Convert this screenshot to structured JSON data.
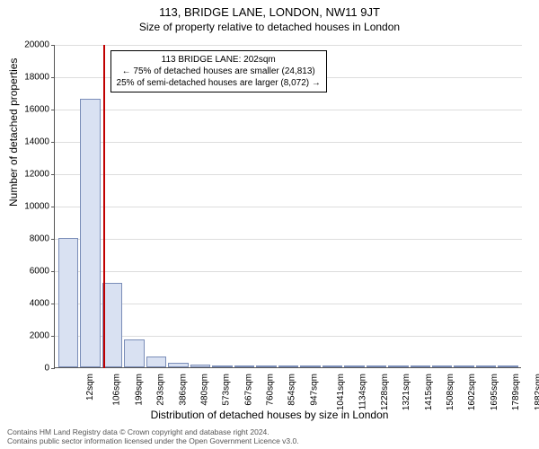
{
  "title": "113, BRIDGE LANE, LONDON, NW11 9JT",
  "subtitle": "Size of property relative to detached houses in London",
  "ylabel": "Number of detached properties",
  "xlabel": "Distribution of detached houses by size in London",
  "chart": {
    "type": "histogram",
    "ylim": [
      0,
      20000
    ],
    "ytick_step": 2000,
    "bar_fill": "#d9e1f2",
    "bar_stroke": "#7a8db8",
    "grid_color": "#dddddd",
    "background_color": "#ffffff",
    "marker_value": 202,
    "marker_color": "#c00000",
    "bin_start": 12,
    "bin_width": 93.5,
    "bins": [
      {
        "label": "12sqm",
        "count": 8000
      },
      {
        "label": "106sqm",
        "count": 16600
      },
      {
        "label": "199sqm",
        "count": 5200
      },
      {
        "label": "293sqm",
        "count": 1700
      },
      {
        "label": "386sqm",
        "count": 650
      },
      {
        "label": "480sqm",
        "count": 280
      },
      {
        "label": "573sqm",
        "count": 140
      },
      {
        "label": "667sqm",
        "count": 80
      },
      {
        "label": "760sqm",
        "count": 50
      },
      {
        "label": "854sqm",
        "count": 30
      },
      {
        "label": "947sqm",
        "count": 20
      },
      {
        "label": "1041sqm",
        "count": 15
      },
      {
        "label": "1134sqm",
        "count": 10
      },
      {
        "label": "1228sqm",
        "count": 8
      },
      {
        "label": "1321sqm",
        "count": 5
      },
      {
        "label": "1415sqm",
        "count": 4
      },
      {
        "label": "1508sqm",
        "count": 3
      },
      {
        "label": "1602sqm",
        "count": 2
      },
      {
        "label": "1695sqm",
        "count": 2
      },
      {
        "label": "1789sqm",
        "count": 1
      },
      {
        "label": "1882sqm",
        "count": 1
      }
    ]
  },
  "annotation": {
    "line1": "113 BRIDGE LANE: 202sqm",
    "line2": "← 75% of detached houses are smaller (24,813)",
    "line3": "25% of semi-detached houses are larger (8,072) →"
  },
  "footer": {
    "line1": "Contains HM Land Registry data © Crown copyright and database right 2024.",
    "line2": "Contains public sector information licensed under the Open Government Licence v3.0."
  }
}
